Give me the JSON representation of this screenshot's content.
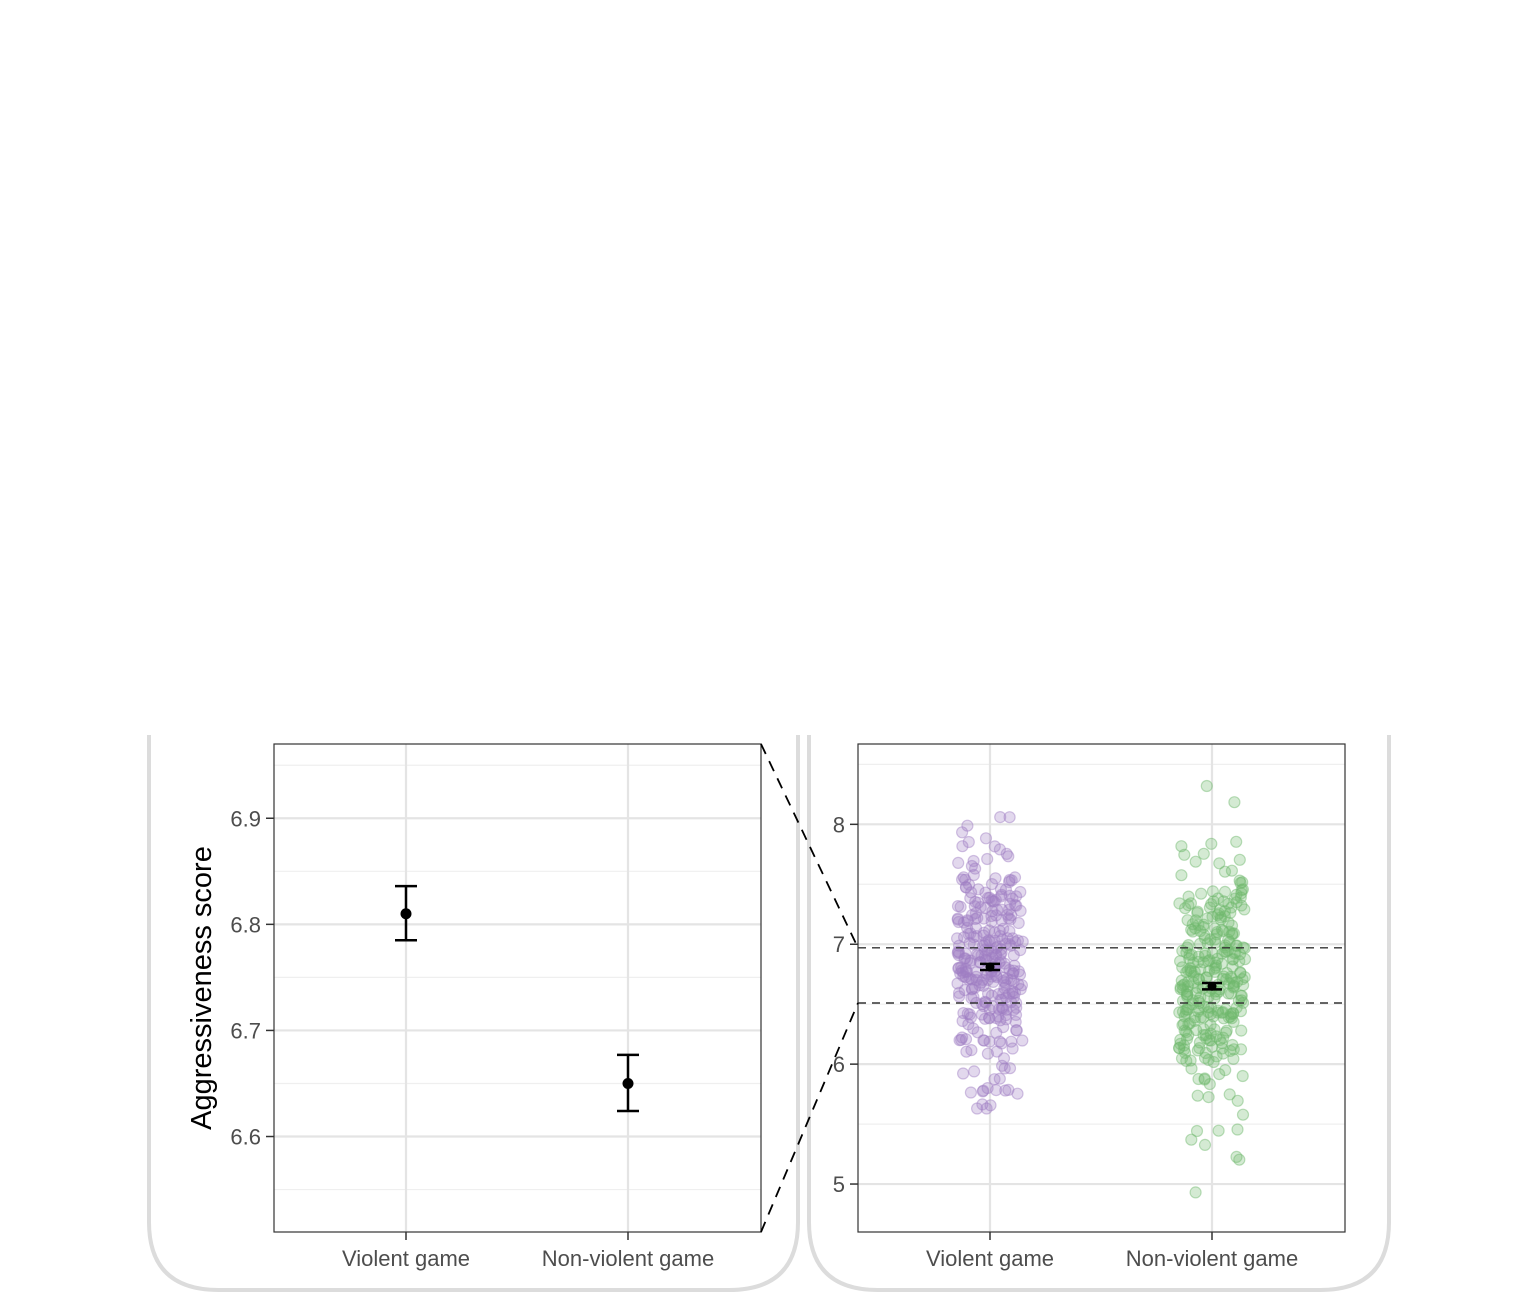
{
  "chart_data": [
    {
      "type": "errorbar",
      "ylabel": "Aggressiveness score",
      "xlabel": "",
      "categories": [
        "Violent game",
        "Non-violent game"
      ],
      "means": [
        6.81,
        6.65
      ],
      "ci_low": [
        6.785,
        6.624
      ],
      "ci_high": [
        6.836,
        6.677
      ],
      "ylim": [
        6.51,
        6.97
      ],
      "yticks": [
        "6.6",
        "6.7",
        "6.8",
        "6.9"
      ],
      "grid": true,
      "colors": {
        "point": "#000000",
        "grid": "#ebebeb"
      }
    },
    {
      "type": "scatter",
      "categories": [
        "Violent game",
        "Non-violent game"
      ],
      "means": [
        6.81,
        6.65
      ],
      "ci_low": [
        6.785,
        6.624
      ],
      "ci_high": [
        6.836,
        6.677
      ],
      "ylim": [
        4.6,
        8.67
      ],
      "yticks": [
        "5",
        "6",
        "7",
        "8"
      ],
      "zoom_band": [
        6.51,
        6.97
      ],
      "grid": true,
      "colors": {
        "Violent game": "#9f7fc3",
        "Non-violent game": "#6fb86d"
      },
      "points_summary": {
        "Violent game": {
          "n": 300,
          "min": 5.63,
          "max": 8.06
        },
        "Non-violent game": {
          "n": 300,
          "min": 4.93,
          "max": 8.32
        }
      }
    }
  ]
}
